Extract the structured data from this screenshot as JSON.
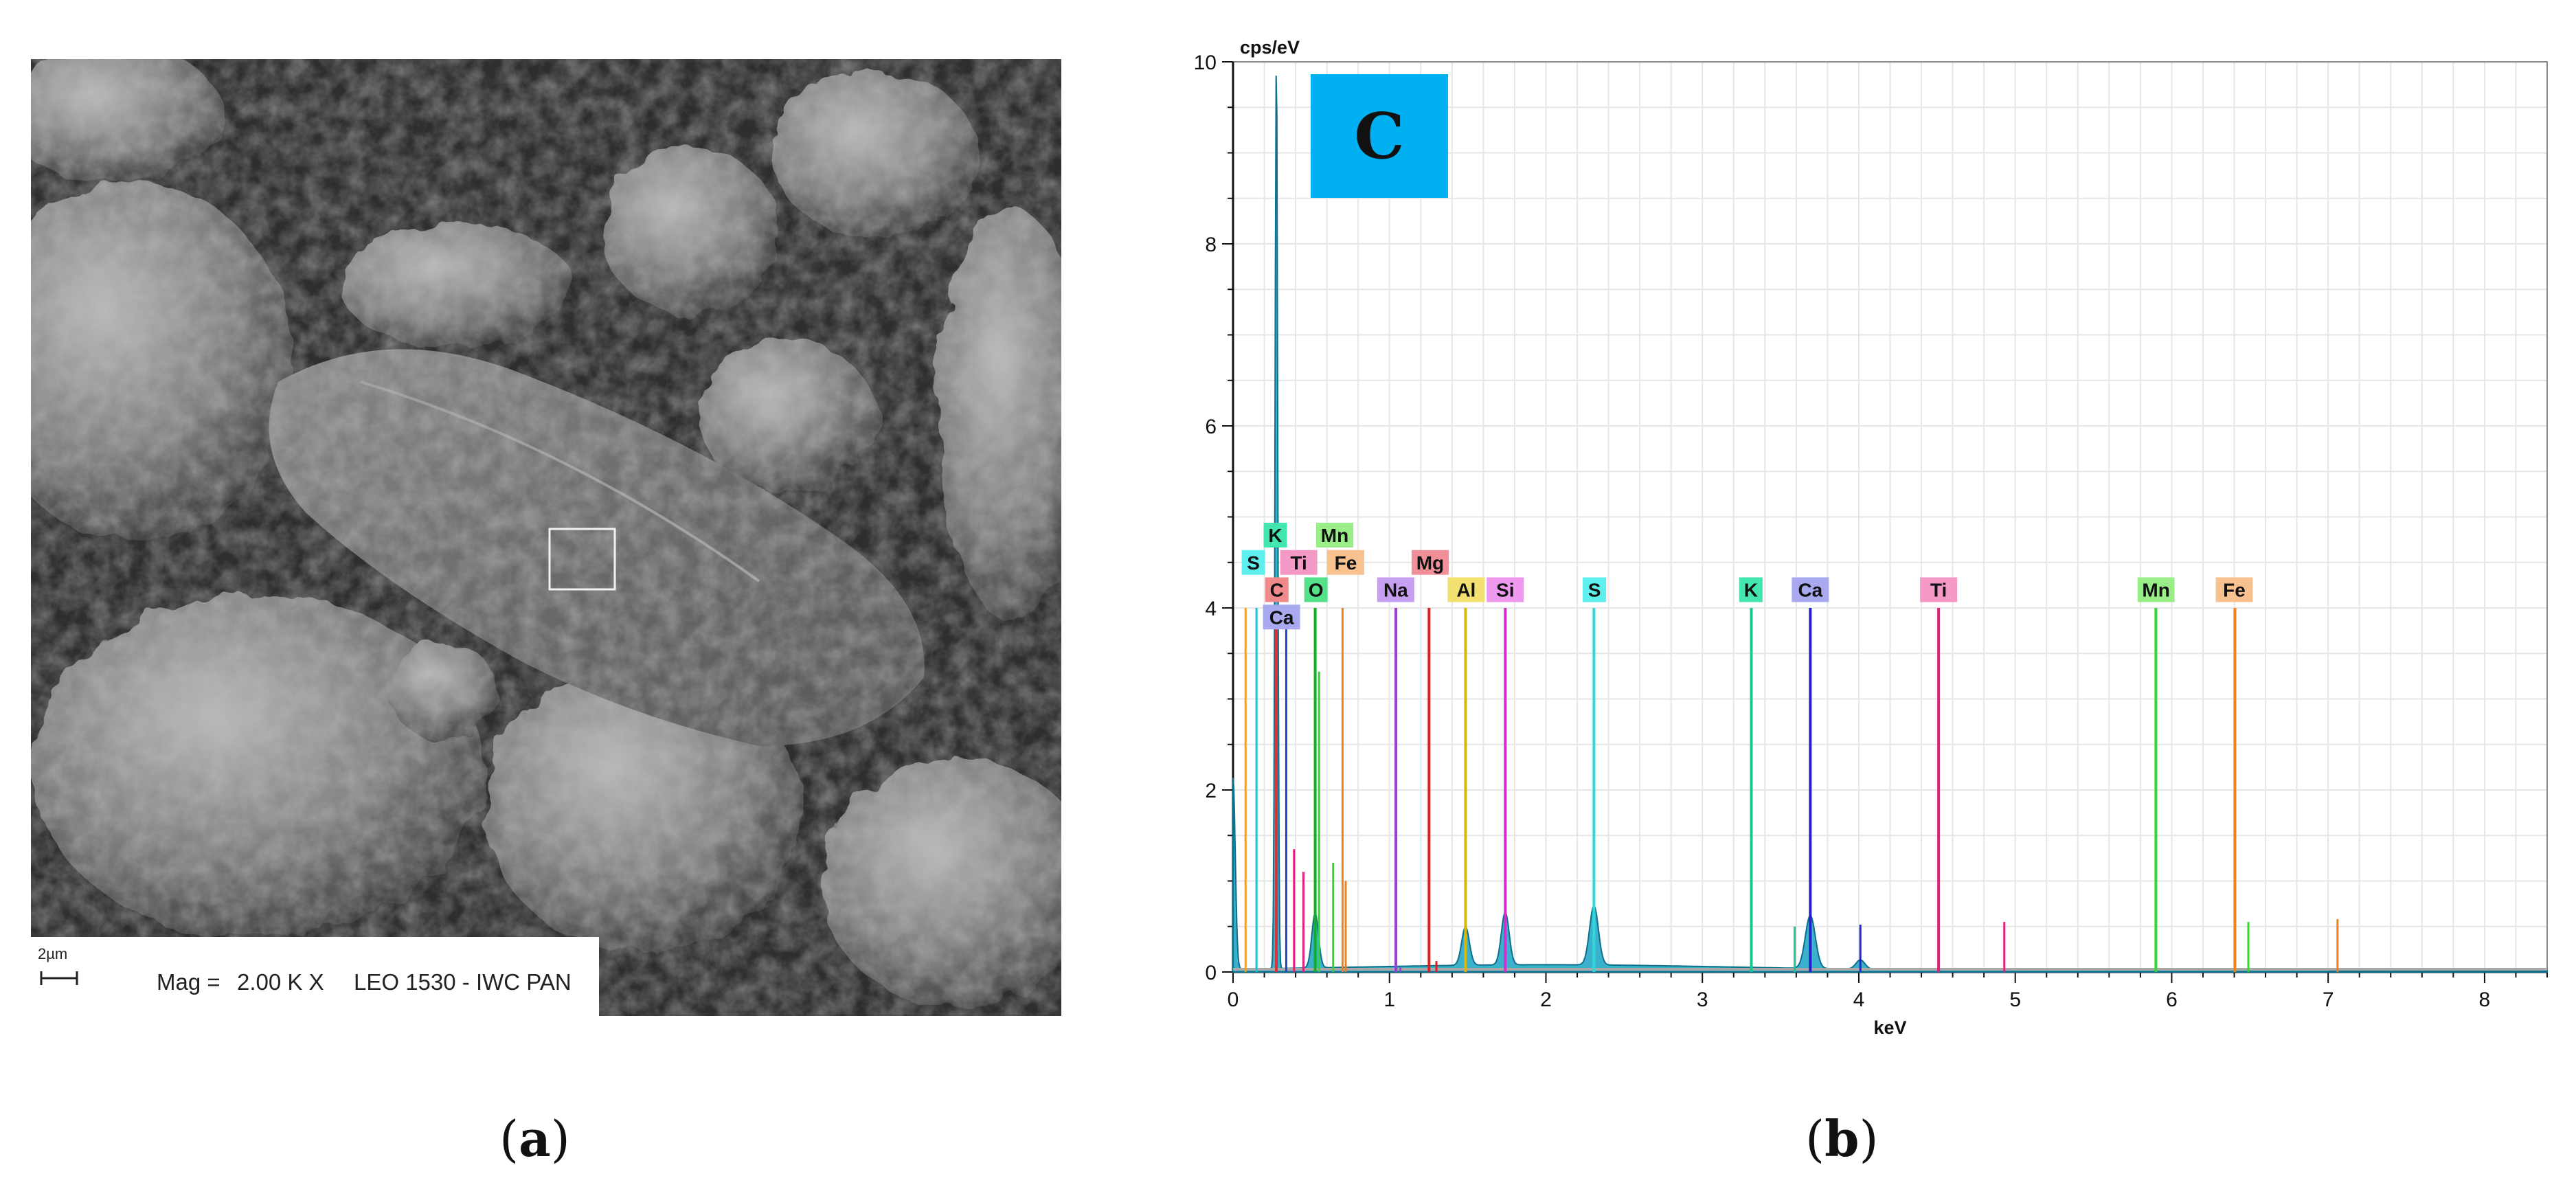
{
  "panel_a": {
    "scale_label": "2µm",
    "mag_label": "Mag =",
    "mag_value": "2.00 K X",
    "instrument": "LEO 1530 - IWC PAN",
    "caption_open": "(",
    "caption_letter": "a",
    "caption_close": ")"
  },
  "panel_b": {
    "caption_open": "(",
    "caption_letter": "b",
    "caption_close": ")",
    "badge_label": "C",
    "badge_color": "#00b0f0"
  },
  "chart_data": {
    "type": "line",
    "title": "",
    "xlabel": "keV",
    "ylabel": "cps/eV",
    "xlim": [
      0,
      8.4
    ],
    "ylim": [
      0,
      10
    ],
    "x_ticks": [
      0,
      1,
      2,
      3,
      4,
      5,
      6,
      7,
      8
    ],
    "y_ticks": [
      0,
      2,
      4,
      6,
      8,
      10
    ],
    "grid": true,
    "spectrum_peaks": [
      {
        "center": 0.0,
        "height": 2.1,
        "width": 0.02
      },
      {
        "center": 0.277,
        "height": 10.0,
        "width": 0.012
      },
      {
        "center": 0.525,
        "height": 0.6,
        "width": 0.03
      },
      {
        "center": 1.486,
        "height": 0.42,
        "width": 0.035
      },
      {
        "center": 1.74,
        "height": 0.58,
        "width": 0.035
      },
      {
        "center": 2.307,
        "height": 0.65,
        "width": 0.04
      },
      {
        "center": 3.69,
        "height": 0.58,
        "width": 0.045
      },
      {
        "center": 4.01,
        "height": 0.1,
        "width": 0.04
      }
    ],
    "element_lines": [
      {
        "element": "S",
        "energy": 2.307,
        "height": 4.0,
        "color": "#2fd9d9"
      },
      {
        "element": "K",
        "energy": 3.313,
        "height": 4.0,
        "color": "#16c98f"
      },
      {
        "element": "Ca",
        "energy": 3.69,
        "height": 4.0,
        "color": "#2222c8"
      },
      {
        "element": "Ti",
        "energy": 4.51,
        "height": 4.0,
        "color": "#e0207a"
      },
      {
        "element": "Mn",
        "energy": 5.899,
        "height": 4.0,
        "color": "#33d62e"
      },
      {
        "element": "Fe",
        "energy": 6.404,
        "height": 4.0,
        "color": "#f08018"
      },
      {
        "element": "Na",
        "energy": 1.041,
        "height": 4.0,
        "color": "#9a3ed8"
      },
      {
        "element": "Mg",
        "energy": 1.253,
        "height": 4.0,
        "color": "#e02020"
      },
      {
        "element": "Al",
        "energy": 1.486,
        "height": 4.0,
        "color": "#d8b80a"
      },
      {
        "element": "Si",
        "energy": 1.74,
        "height": 4.0,
        "color": "#d030d0"
      },
      {
        "element": "O",
        "energy": 0.525,
        "height": 4.0,
        "color": "#10b020"
      },
      {
        "element": "C",
        "energy": 0.277,
        "height": 4.0,
        "color": "#e03030"
      }
    ],
    "minor_lines": [
      {
        "energy": 0.08,
        "height": 4.0,
        "color": "#f0a020"
      },
      {
        "energy": 0.15,
        "height": 4.0,
        "color": "#20c0d0"
      },
      {
        "energy": 0.34,
        "height": 3.9,
        "color": "#2244cc"
      },
      {
        "energy": 0.39,
        "height": 1.35,
        "color": "#e0207a"
      },
      {
        "energy": 0.45,
        "height": 1.1,
        "color": "#e0207a"
      },
      {
        "energy": 0.55,
        "height": 3.3,
        "color": "#33d62e"
      },
      {
        "energy": 0.64,
        "height": 1.2,
        "color": "#33d62e"
      },
      {
        "energy": 0.7,
        "height": 4.0,
        "color": "#f08018"
      },
      {
        "energy": 0.72,
        "height": 1.0,
        "color": "#f08018"
      },
      {
        "energy": 3.59,
        "height": 0.5,
        "color": "#16c98f"
      },
      {
        "energy": 4.01,
        "height": 0.52,
        "color": "#2222c8"
      },
      {
        "energy": 4.93,
        "height": 0.55,
        "color": "#e0207a"
      },
      {
        "energy": 6.49,
        "height": 0.55,
        "color": "#33d62e"
      },
      {
        "energy": 7.06,
        "height": 0.58,
        "color": "#f08018"
      },
      {
        "energy": 1.3,
        "height": 0.12,
        "color": "#e02020"
      },
      {
        "energy": 1.07,
        "height": 0.05,
        "color": "#9a3ed8"
      }
    ],
    "labels": [
      {
        "text": "S",
        "x": 0.13,
        "y": 4.5,
        "color": "#5fefef"
      },
      {
        "text": "K",
        "x": 0.27,
        "y": 4.8,
        "color": "#44e6b0"
      },
      {
        "text": "Mn",
        "x": 0.65,
        "y": 4.8,
        "color": "#99ee88"
      },
      {
        "text": "Ti",
        "x": 0.42,
        "y": 4.5,
        "color": "#f59ac6"
      },
      {
        "text": "Fe",
        "x": 0.72,
        "y": 4.5,
        "color": "#f8c290"
      },
      {
        "text": "C",
        "x": 0.28,
        "y": 4.2,
        "color": "#f08a8a"
      },
      {
        "text": "O",
        "x": 0.53,
        "y": 4.2,
        "color": "#55e08a"
      },
      {
        "text": "Ca",
        "x": 0.31,
        "y": 3.9,
        "color": "#a9a9ef"
      },
      {
        "text": "Na",
        "x": 1.04,
        "y": 4.2,
        "color": "#c79ff0"
      },
      {
        "text": "Mg",
        "x": 1.26,
        "y": 4.5,
        "color": "#f2909a"
      },
      {
        "text": "Al",
        "x": 1.49,
        "y": 4.2,
        "color": "#f2e070"
      },
      {
        "text": "Si",
        "x": 1.74,
        "y": 4.2,
        "color": "#ee99ee"
      },
      {
        "text": "S",
        "x": 2.31,
        "y": 4.2,
        "color": "#5fefef"
      },
      {
        "text": "K",
        "x": 3.31,
        "y": 4.2,
        "color": "#44e6b0"
      },
      {
        "text": "Ca",
        "x": 3.69,
        "y": 4.2,
        "color": "#a9a9ef"
      },
      {
        "text": "Ti",
        "x": 4.51,
        "y": 4.2,
        "color": "#f59ac6"
      },
      {
        "text": "Mn",
        "x": 5.9,
        "y": 4.2,
        "color": "#99ee88"
      },
      {
        "text": "Fe",
        "x": 6.4,
        "y": 4.2,
        "color": "#f8c290"
      }
    ]
  }
}
